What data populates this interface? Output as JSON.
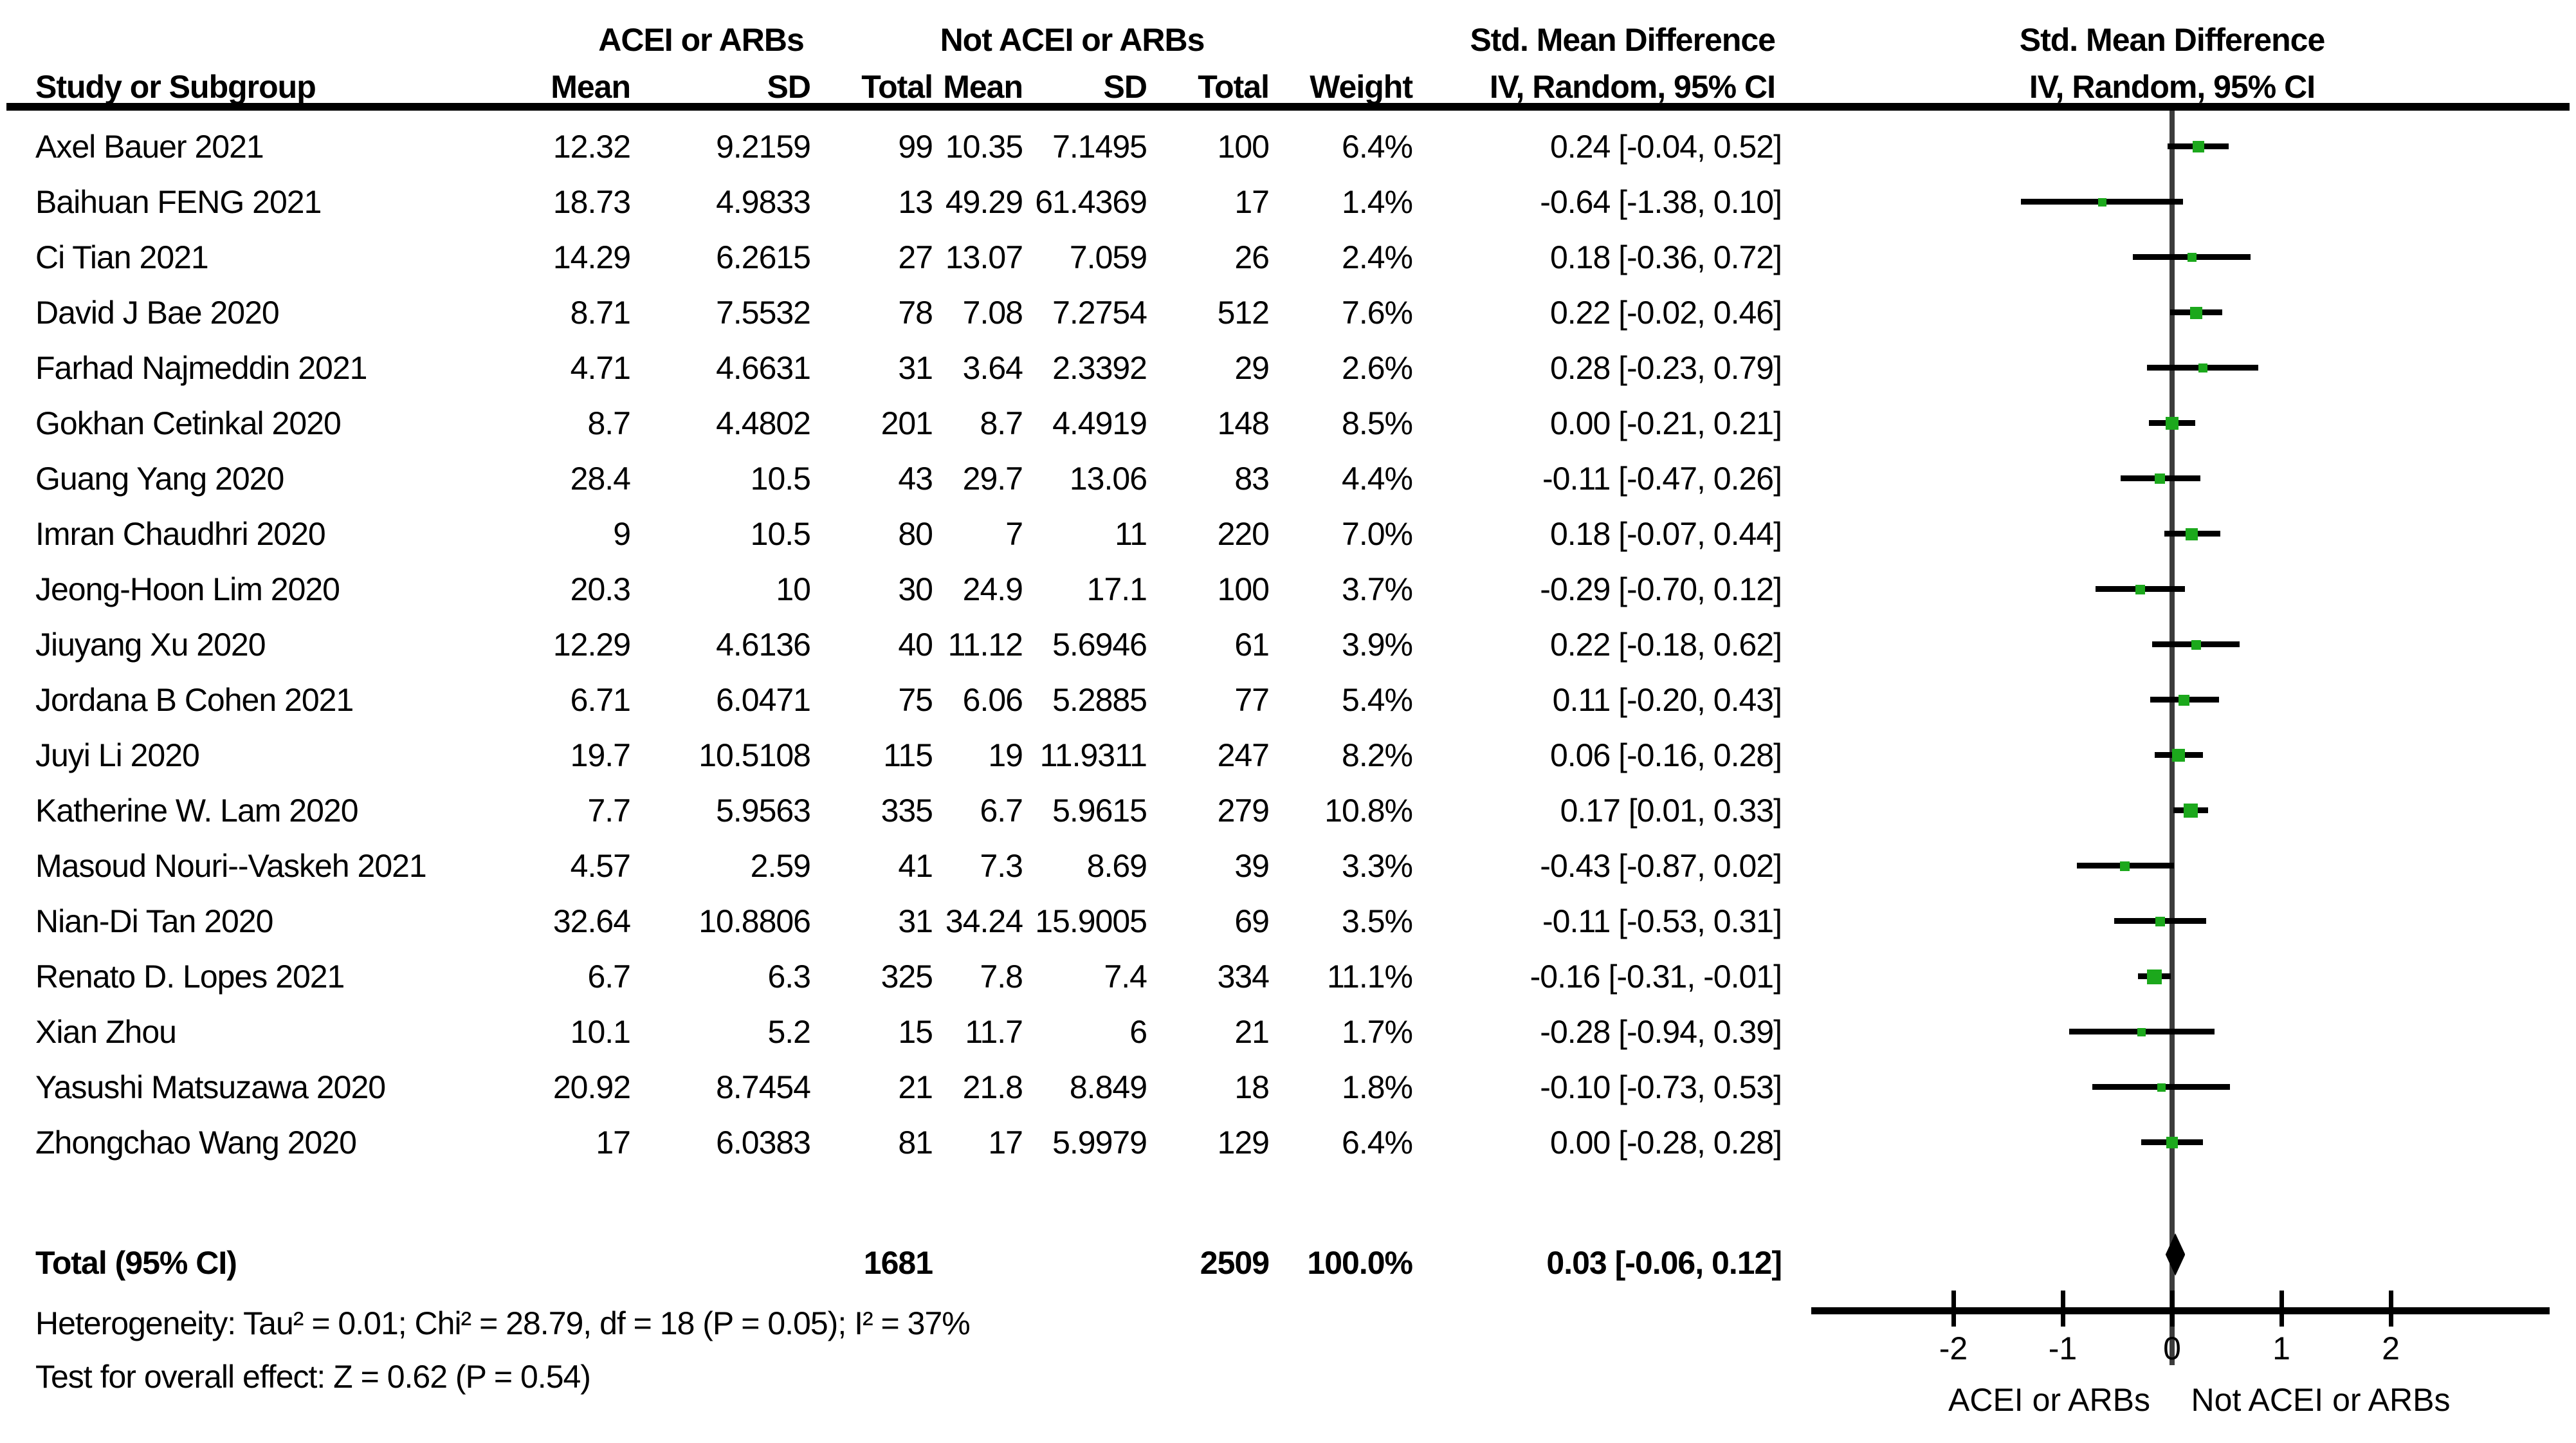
{
  "chart_data": {
    "type": "forest",
    "effect_measure": "Std. Mean Difference",
    "model": "IV, Random, 95% CI",
    "header": {
      "group1": "ACEI or ARBs",
      "group2": "Not ACEI or ARBs",
      "smd1": "Std. Mean Difference",
      "smd2": "Std. Mean Difference",
      "study": "Study or Subgroup",
      "mean1": "Mean",
      "sd1": "SD",
      "total1": "Total",
      "mean2": "Mean",
      "sd2": "SD",
      "total2": "Total",
      "weight": "Weight",
      "method1": "IV, Random, 95% CI",
      "method2": "IV, Random, 95% CI"
    },
    "studies": [
      {
        "name": "Axel Bauer 2021",
        "mean1": "12.32",
        "sd1": "9.2159",
        "total1": "99",
        "mean2": "10.35",
        "sd2": "7.1495",
        "total2": "100",
        "weight": "6.4%",
        "weight_pct": 6.4,
        "ci_text": "0.24 [-0.04, 0.52]",
        "est": 0.24,
        "lo": -0.04,
        "hi": 0.52
      },
      {
        "name": "Baihuan FENG 2021",
        "mean1": "18.73",
        "sd1": "4.9833",
        "total1": "13",
        "mean2": "49.29",
        "sd2": "61.4369",
        "total2": "17",
        "weight": "1.4%",
        "weight_pct": 1.4,
        "ci_text": "-0.64 [-1.38, 0.10]",
        "est": -0.64,
        "lo": -1.38,
        "hi": 0.1
      },
      {
        "name": "Ci Tian 2021",
        "mean1": "14.29",
        "sd1": "6.2615",
        "total1": "27",
        "mean2": "13.07",
        "sd2": "7.059",
        "total2": "26",
        "weight": "2.4%",
        "weight_pct": 2.4,
        "ci_text": "0.18 [-0.36, 0.72]",
        "est": 0.18,
        "lo": -0.36,
        "hi": 0.72
      },
      {
        "name": "David J Bae 2020",
        "mean1": "8.71",
        "sd1": "7.5532",
        "total1": "78",
        "mean2": "7.08",
        "sd2": "7.2754",
        "total2": "512",
        "weight": "7.6%",
        "weight_pct": 7.6,
        "ci_text": "0.22 [-0.02, 0.46]",
        "est": 0.22,
        "lo": -0.02,
        "hi": 0.46
      },
      {
        "name": "Farhad Najmeddin 2021",
        "mean1": "4.71",
        "sd1": "4.6631",
        "total1": "31",
        "mean2": "3.64",
        "sd2": "2.3392",
        "total2": "29",
        "weight": "2.6%",
        "weight_pct": 2.6,
        "ci_text": "0.28 [-0.23, 0.79]",
        "est": 0.28,
        "lo": -0.23,
        "hi": 0.79
      },
      {
        "name": "Gokhan Cetinkal 2020",
        "mean1": "8.7",
        "sd1": "4.4802",
        "total1": "201",
        "mean2": "8.7",
        "sd2": "4.4919",
        "total2": "148",
        "weight": "8.5%",
        "weight_pct": 8.5,
        "ci_text": "0.00 [-0.21, 0.21]",
        "est": 0.0,
        "lo": -0.21,
        "hi": 0.21
      },
      {
        "name": "Guang Yang 2020",
        "mean1": "28.4",
        "sd1": "10.5",
        "total1": "43",
        "mean2": "29.7",
        "sd2": "13.06",
        "total2": "83",
        "weight": "4.4%",
        "weight_pct": 4.4,
        "ci_text": "-0.11 [-0.47, 0.26]",
        "est": -0.11,
        "lo": -0.47,
        "hi": 0.26
      },
      {
        "name": "Imran Chaudhri 2020",
        "mean1": "9",
        "sd1": "10.5",
        "total1": "80",
        "mean2": "7",
        "sd2": "11",
        "total2": "220",
        "weight": "7.0%",
        "weight_pct": 7.0,
        "ci_text": "0.18 [-0.07, 0.44]",
        "est": 0.18,
        "lo": -0.07,
        "hi": 0.44
      },
      {
        "name": "Jeong-Hoon Lim 2020",
        "mean1": "20.3",
        "sd1": "10",
        "total1": "30",
        "mean2": "24.9",
        "sd2": "17.1",
        "total2": "100",
        "weight": "3.7%",
        "weight_pct": 3.7,
        "ci_text": "-0.29 [-0.70, 0.12]",
        "est": -0.29,
        "lo": -0.7,
        "hi": 0.12
      },
      {
        "name": "Jiuyang Xu 2020",
        "mean1": "12.29",
        "sd1": "4.6136",
        "total1": "40",
        "mean2": "11.12",
        "sd2": "5.6946",
        "total2": "61",
        "weight": "3.9%",
        "weight_pct": 3.9,
        "ci_text": "0.22 [-0.18, 0.62]",
        "est": 0.22,
        "lo": -0.18,
        "hi": 0.62
      },
      {
        "name": "Jordana B Cohen 2021",
        "mean1": "6.71",
        "sd1": "6.0471",
        "total1": "75",
        "mean2": "6.06",
        "sd2": "5.2885",
        "total2": "77",
        "weight": "5.4%",
        "weight_pct": 5.4,
        "ci_text": "0.11 [-0.20, 0.43]",
        "est": 0.11,
        "lo": -0.2,
        "hi": 0.43
      },
      {
        "name": "Juyi Li 2020",
        "mean1": "19.7",
        "sd1": "10.5108",
        "total1": "115",
        "mean2": "19",
        "sd2": "11.9311",
        "total2": "247",
        "weight": "8.2%",
        "weight_pct": 8.2,
        "ci_text": "0.06 [-0.16, 0.28]",
        "est": 0.06,
        "lo": -0.16,
        "hi": 0.28
      },
      {
        "name": "Katherine W. Lam 2020",
        "mean1": "7.7",
        "sd1": "5.9563",
        "total1": "335",
        "mean2": "6.7",
        "sd2": "5.9615",
        "total2": "279",
        "weight": "10.8%",
        "weight_pct": 10.8,
        "ci_text": "0.17 [0.01, 0.33]",
        "est": 0.17,
        "lo": 0.01,
        "hi": 0.33
      },
      {
        "name": "Masoud Nouri--Vaskeh 2021",
        "mean1": "4.57",
        "sd1": "2.59",
        "total1": "41",
        "mean2": "7.3",
        "sd2": "8.69",
        "total2": "39",
        "weight": "3.3%",
        "weight_pct": 3.3,
        "ci_text": "-0.43 [-0.87, 0.02]",
        "est": -0.43,
        "lo": -0.87,
        "hi": 0.02
      },
      {
        "name": "Nian-Di Tan 2020",
        "mean1": "32.64",
        "sd1": "10.8806",
        "total1": "31",
        "mean2": "34.24",
        "sd2": "15.9005",
        "total2": "69",
        "weight": "3.5%",
        "weight_pct": 3.5,
        "ci_text": "-0.11 [-0.53, 0.31]",
        "est": -0.11,
        "lo": -0.53,
        "hi": 0.31
      },
      {
        "name": "Renato D. Lopes 2021",
        "mean1": "6.7",
        "sd1": "6.3",
        "total1": "325",
        "mean2": "7.8",
        "sd2": "7.4",
        "total2": "334",
        "weight": "11.1%",
        "weight_pct": 11.1,
        "ci_text": "-0.16 [-0.31, -0.01]",
        "est": -0.16,
        "lo": -0.31,
        "hi": -0.01
      },
      {
        "name": "Xian Zhou",
        "mean1": "10.1",
        "sd1": "5.2",
        "total1": "15",
        "mean2": "11.7",
        "sd2": "6",
        "total2": "21",
        "weight": "1.7%",
        "weight_pct": 1.7,
        "ci_text": "-0.28 [-0.94, 0.39]",
        "est": -0.28,
        "lo": -0.94,
        "hi": 0.39
      },
      {
        "name": "Yasushi Matsuzawa 2020",
        "mean1": "20.92",
        "sd1": "8.7454",
        "total1": "21",
        "mean2": "21.8",
        "sd2": "8.849",
        "total2": "18",
        "weight": "1.8%",
        "weight_pct": 1.8,
        "ci_text": "-0.10 [-0.73, 0.53]",
        "est": -0.1,
        "lo": -0.73,
        "hi": 0.53
      },
      {
        "name": "Zhongchao Wang 2020",
        "mean1": "17",
        "sd1": "6.0383",
        "total1": "81",
        "mean2": "17",
        "sd2": "5.9979",
        "total2": "129",
        "weight": "6.4%",
        "weight_pct": 6.4,
        "ci_text": "0.00 [-0.28, 0.28]",
        "est": 0.0,
        "lo": -0.28,
        "hi": 0.28
      }
    ],
    "totals": {
      "label": "Total (95% CI)",
      "total1": "1681",
      "total2": "2509",
      "weight": "100.0%",
      "ci_text": "0.03 [-0.06, 0.12]",
      "est": 0.03,
      "lo": -0.06,
      "hi": 0.12
    },
    "heterogeneity": "Heterogeneity: Tau² = 0.01; Chi² = 28.79, df = 18 (P = 0.05); I² = 37%",
    "overall_effect": "Test for overall effect: Z = 0.62 (P = 0.54)",
    "axis": {
      "ticks": [
        -2,
        -1,
        0,
        1,
        2
      ],
      "tick_labels": [
        "-2",
        "-1",
        "0",
        "1",
        "2"
      ],
      "xlim": [
        -3.3,
        3.45
      ],
      "left_label": "ACEI or ARBs",
      "right_label": "Not ACEI or ARBs"
    },
    "colors": {
      "marker": "#1CA81C",
      "ci_line": "#000000",
      "zero_line": "#3C3C3C",
      "diamond": "#000000"
    }
  }
}
